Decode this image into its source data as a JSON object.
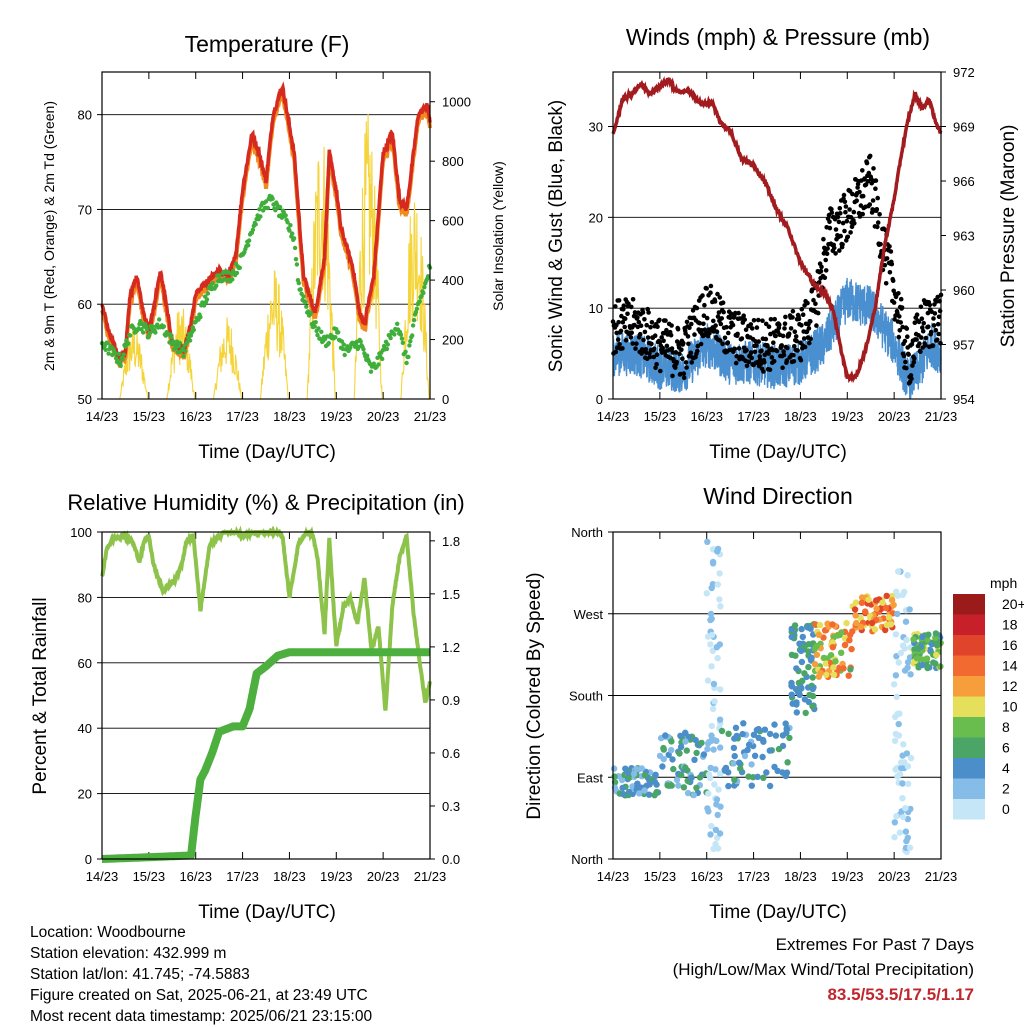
{
  "chart_data": [
    {
      "type": "line",
      "title": "Temperature (F)",
      "xlabel": "Time (Day/UTC)",
      "ylabel_left": "2m & 9m T (Red, Orange) & 2m Td (Green)",
      "ylabel_right": "Solar Insolation (Yellow)",
      "x_ticks": [
        "14/23",
        "15/23",
        "16/23",
        "17/23",
        "18/23",
        "19/23",
        "20/23",
        "21/23"
      ],
      "ylim_left": [
        50,
        84.5
      ],
      "yticks_left": [
        50,
        60,
        70,
        80
      ],
      "ylim_right": [
        0,
        1100
      ],
      "yticks_right": [
        0,
        200,
        400,
        600,
        800,
        1000
      ],
      "grid": true,
      "colors": {
        "t2m": "#d62a1e",
        "t9m": "#f28b1f",
        "td": "#3fae3a",
        "solar": "#f5d43a"
      },
      "series": [
        {
          "name": "2m T",
          "axis": "left",
          "x": [
            0,
            0.15,
            0.35,
            0.5,
            0.6,
            0.75,
            0.85,
            1.0,
            1.25,
            1.5,
            1.75,
            1.9,
            2.0,
            2.25,
            2.5,
            2.7,
            2.85,
            3.0,
            3.2,
            3.35,
            3.5,
            3.65,
            3.85,
            4.1,
            4.3,
            4.55,
            4.75,
            4.85,
            5.0,
            5.1,
            5.35,
            5.5,
            5.6,
            5.8,
            6.0,
            6.2,
            6.35,
            6.5,
            6.75,
            6.95,
            7.0
          ],
          "y": [
            60,
            57,
            54.5,
            55,
            61,
            63,
            60,
            57,
            63.5,
            56,
            55,
            58,
            61,
            62.5,
            63.5,
            63,
            65,
            72,
            78,
            76,
            73,
            80,
            83,
            76,
            63,
            59,
            65,
            76,
            72,
            68,
            64,
            59,
            58,
            63,
            76,
            78,
            71,
            70,
            80,
            81,
            79
          ]
        },
        {
          "name": "2m Td",
          "axis": "left",
          "x": [
            0,
            0.2,
            0.4,
            0.6,
            0.8,
            1.0,
            1.25,
            1.5,
            1.75,
            2.0,
            2.25,
            2.5,
            2.75,
            2.9,
            3.0,
            3.2,
            3.4,
            3.6,
            3.75,
            3.9,
            4.1,
            4.2,
            4.35,
            4.5,
            4.75,
            5.0,
            5.2,
            5.5,
            5.75,
            5.9,
            6.1,
            6.3,
            6.5,
            6.75,
            6.9,
            7.0
          ],
          "y": [
            56,
            55,
            54,
            57,
            58,
            57,
            58,
            56,
            55,
            58,
            61,
            63,
            63,
            64,
            65,
            68,
            70,
            71,
            70,
            69,
            67,
            62,
            60,
            58,
            56,
            57,
            55,
            56,
            53,
            54,
            56,
            58,
            54,
            60,
            62,
            64
          ]
        }
      ],
      "solar_peak": 1000
    },
    {
      "type": "line",
      "title": "Winds (mph) & Pressure (mb)",
      "xlabel": "Time (Day/UTC)",
      "ylabel_left": "Sonic Wind & Gust (Blue, Black)",
      "ylabel_right": "Station Pressure (Maroon)",
      "x_ticks": [
        "14/23",
        "15/23",
        "16/23",
        "17/23",
        "18/23",
        "19/23",
        "20/23",
        "21/23"
      ],
      "ylim_left": [
        0,
        36
      ],
      "yticks_left": [
        0,
        10,
        20,
        30
      ],
      "ylim_right": [
        954,
        972
      ],
      "yticks_right": [
        954,
        957,
        960,
        963,
        966,
        969,
        972
      ],
      "grid": true,
      "colors": {
        "wind": "#4a8fd0",
        "gust": "#000000",
        "pressure": "#a11b1f"
      },
      "series": [
        {
          "name": "Station Pressure",
          "axis": "right",
          "x": [
            0,
            0.1,
            0.2,
            0.4,
            0.6,
            0.8,
            1.0,
            1.2,
            1.3,
            1.45,
            1.6,
            1.75,
            1.9,
            2.1,
            2.3,
            2.5,
            2.75,
            3.0,
            3.25,
            3.5,
            3.75,
            4.0,
            4.2,
            4.35,
            4.5,
            4.7,
            4.85,
            5.0,
            5.2,
            5.4,
            5.6,
            5.8,
            6.0,
            6.15,
            6.3,
            6.45,
            6.6,
            6.75,
            6.85,
            7.0
          ],
          "y": [
            968.5,
            969.5,
            970.5,
            970.8,
            971.3,
            970.8,
            971.2,
            971.6,
            971.1,
            970.9,
            971.0,
            970.6,
            970.2,
            970.4,
            969.2,
            968.8,
            967.2,
            966.9,
            965.9,
            964.4,
            963.3,
            961.5,
            960.7,
            960.1,
            959.9,
            958.9,
            956.9,
            955.2,
            955.3,
            956.8,
            959.1,
            962.5,
            965.0,
            967.4,
            969.4,
            970.8,
            970.0,
            970.5,
            969.5,
            968.6
          ]
        }
      ]
    },
    {
      "type": "line",
      "title": "Relative Humidity (%) & Precipitation (in)",
      "xlabel": "Time (Day/UTC)",
      "ylabel_left": "Percent & Total Rainfall",
      "x_ticks": [
        "14/23",
        "15/23",
        "16/23",
        "17/23",
        "18/23",
        "19/23",
        "20/23",
        "21/23"
      ],
      "ylim_left": [
        0,
        100
      ],
      "yticks_left": [
        0,
        20,
        40,
        60,
        80,
        100
      ],
      "ylim_right": [
        0,
        1.85
      ],
      "yticks_right": [
        0.0,
        0.3,
        0.6,
        0.9,
        1.2,
        1.5,
        1.8
      ],
      "grid": true,
      "colors": {
        "rh": "#8dc34a",
        "precip": "#4caf3e"
      },
      "series": [
        {
          "name": "Relative Humidity",
          "axis": "left",
          "x": [
            0,
            0.1,
            0.25,
            0.45,
            0.65,
            0.8,
            0.9,
            1.0,
            1.1,
            1.3,
            1.55,
            1.7,
            1.8,
            1.95,
            2.1,
            2.3,
            2.6,
            2.85,
            3.0,
            3.25,
            3.5,
            3.75,
            3.85,
            4.0,
            4.2,
            4.4,
            4.5,
            4.6,
            4.75,
            4.85,
            5.0,
            5.15,
            5.3,
            5.45,
            5.6,
            5.75,
            5.9,
            6.05,
            6.2,
            6.35,
            6.5,
            6.65,
            6.8,
            6.9,
            7.0
          ],
          "y": [
            86,
            95,
            98,
            99,
            97,
            91,
            97,
            99,
            90,
            82,
            85,
            90,
            97,
            99,
            76,
            96,
            100,
            100,
            99,
            100,
            100,
            100,
            99,
            80,
            97,
            100,
            99,
            92,
            69,
            98,
            65,
            77,
            80,
            72,
            86,
            64,
            71,
            45,
            78,
            92,
            99,
            75,
            58,
            48,
            54
          ]
        },
        {
          "name": "Total Rainfall",
          "axis": "right",
          "x": [
            0,
            1.0,
            1.9,
            2.0,
            2.1,
            2.2,
            2.35,
            2.5,
            2.8,
            3.0,
            3.15,
            3.3,
            3.5,
            3.75,
            4.0,
            5.0,
            6.0,
            7.0
          ],
          "y": [
            0.0,
            0.01,
            0.02,
            0.25,
            0.45,
            0.5,
            0.6,
            0.72,
            0.75,
            0.75,
            0.85,
            1.05,
            1.09,
            1.15,
            1.17,
            1.17,
            1.17,
            1.17
          ]
        }
      ]
    },
    {
      "type": "scatter",
      "title": "Wind Direction",
      "xlabel": "Time (Day/UTC)",
      "ylabel_left": "Direction (Colored By Speed)",
      "x_ticks": [
        "14/23",
        "15/23",
        "16/23",
        "17/23",
        "18/23",
        "19/23",
        "20/23",
        "21/23"
      ],
      "y_ticks": [
        "North",
        "East",
        "South",
        "West",
        "North"
      ],
      "ylim_left": [
        0,
        360
      ],
      "grid": true,
      "legend": {
        "title": "mph",
        "position": "right",
        "labels": [
          "20+",
          "18",
          "16",
          "14",
          "12",
          "10",
          "8",
          "6",
          "4",
          "2",
          "0"
        ],
        "colors": [
          "#9b1b1b",
          "#c8202a",
          "#e0442b",
          "#f26a2f",
          "#f79e3c",
          "#e6df5b",
          "#68bd4e",
          "#4aa566",
          "#4b8ec9",
          "#86bde8",
          "#c5e6f7"
        ]
      },
      "clusters": [
        {
          "x": [
            0,
            1
          ],
          "dir": [
            70,
            100
          ],
          "speed": [
            2,
            6
          ]
        },
        {
          "x": [
            1,
            2
          ],
          "dir": [
            70,
            140
          ],
          "speed": [
            2,
            7
          ]
        },
        {
          "x": [
            2,
            2.3
          ],
          "dir": [
            10,
            350
          ],
          "speed": [
            0,
            3
          ]
        },
        {
          "x": [
            2.3,
            3.8
          ],
          "dir": [
            80,
            150
          ],
          "speed": [
            2,
            6
          ]
        },
        {
          "x": [
            3.8,
            4.3
          ],
          "dir": [
            160,
            260
          ],
          "speed": [
            3,
            7
          ]
        },
        {
          "x": [
            4.3,
            5.1
          ],
          "dir": [
            200,
            260
          ],
          "speed": [
            6,
            15
          ]
        },
        {
          "x": [
            5.1,
            6.0
          ],
          "dir": [
            250,
            290
          ],
          "speed": [
            9,
            17
          ]
        },
        {
          "x": [
            6.0,
            6.4
          ],
          "dir": [
            0,
            320
          ],
          "speed": [
            0,
            2
          ]
        },
        {
          "x": [
            6.4,
            7.0
          ],
          "dir": [
            210,
            250
          ],
          "speed": [
            4,
            11
          ]
        }
      ]
    }
  ],
  "footer": {
    "location": "Location: Woodbourne",
    "elevation": "Station elevation: 432.999 m",
    "latlon": "Station lat/lon: 41.745; -74.5883",
    "created": "Figure created on Sat, 2025-06-21, at 23:49 UTC",
    "recent": "Most recent data timestamp: 2025/06/21 23:15:00"
  },
  "extremes": {
    "title": "Extremes For Past 7 Days",
    "subtitle": "(High/Low/Max Wind/Total Precipitation)",
    "values": "83.5/53.5/17.5/1.17"
  }
}
